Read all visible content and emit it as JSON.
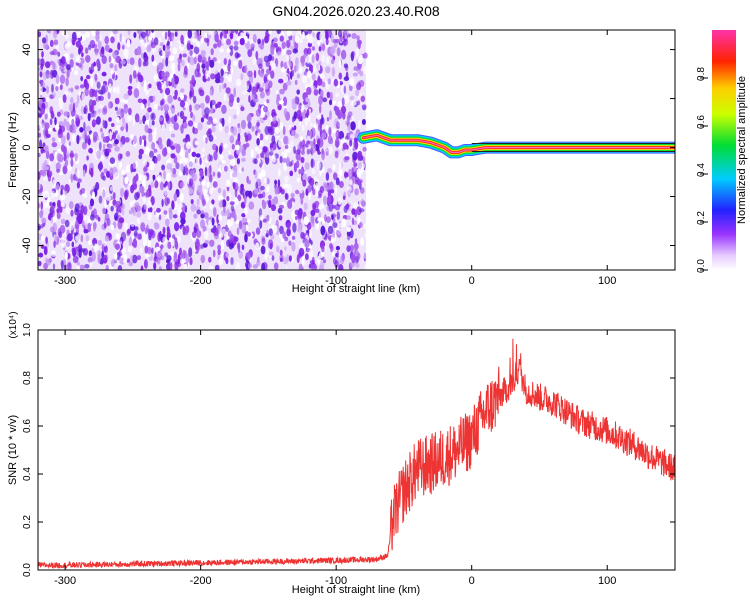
{
  "figure_title": "GN04.2026.020.23.40.R08",
  "chart_data": [
    {
      "id": "spectrogram",
      "type": "heatmap",
      "xlabel": "Height of straight line (km)",
      "ylabel": "Frequency (Hz)",
      "xlim": [
        -320,
        150
      ],
      "ylim": [
        -50,
        48
      ],
      "x_ticks": [
        -300,
        -200,
        -100,
        0,
        100
      ],
      "y_ticks": [
        -40,
        -20,
        0,
        20,
        40
      ],
      "x_tick_labels": [
        "-300",
        "-200",
        "-100",
        "0",
        "100"
      ],
      "y_tick_labels": [
        "-40",
        "-20",
        "0",
        "20",
        "40"
      ],
      "noise_region_x": [
        -320,
        -78
      ],
      "signal_track": {
        "x": [
          -80,
          -70,
          -60,
          -50,
          -40,
          -30,
          -20,
          -15,
          -10,
          -5,
          0,
          10,
          30,
          60,
          100,
          150
        ],
        "y": [
          4,
          5,
          3,
          3,
          3,
          2,
          0,
          -2,
          -2,
          -1,
          -1,
          0,
          0,
          0,
          0,
          0
        ]
      },
      "colorbar": {
        "label": "Normalized spectral amplitude",
        "range": [
          0,
          1
        ],
        "ticks": [
          0.0,
          0.2,
          0.4,
          0.6,
          0.8
        ],
        "tick_labels": [
          "0.0",
          "0.2",
          "0.4",
          "0.6",
          "0.8"
        ]
      }
    },
    {
      "id": "snr",
      "type": "line",
      "xlabel": "Height of straight line (km)",
      "ylabel": "SNR (10 * v/v)",
      "y_multiplier": "(x10⁴)",
      "xlim": [
        -320,
        150
      ],
      "ylim": [
        0,
        1.0
      ],
      "x_ticks": [
        -300,
        -200,
        -100,
        0,
        100
      ],
      "y_ticks": [
        0.0,
        0.2,
        0.4,
        0.6,
        0.8,
        1.0
      ],
      "x_tick_labels": [
        "-300",
        "-200",
        "-100",
        "0",
        "100"
      ],
      "y_tick_labels": [
        "0.0",
        "0.2",
        "0.4",
        "0.6",
        "0.8",
        "1.0"
      ],
      "line_color": "#ee3333",
      "series": [
        {
          "name": "SNR",
          "x": [
            -320,
            -300,
            -250,
            -200,
            -150,
            -100,
            -70,
            -62,
            -58,
            -50,
            -40,
            -30,
            -20,
            -10,
            0,
            10,
            20,
            30,
            35,
            40,
            50,
            60,
            70,
            80,
            90,
            100,
            110,
            120,
            130,
            140,
            150
          ],
          "values": [
            0.02,
            0.02,
            0.025,
            0.03,
            0.035,
            0.04,
            0.045,
            0.06,
            0.22,
            0.33,
            0.42,
            0.44,
            0.47,
            0.5,
            0.55,
            0.66,
            0.72,
            0.78,
            0.84,
            0.75,
            0.72,
            0.7,
            0.66,
            0.62,
            0.6,
            0.58,
            0.55,
            0.52,
            0.48,
            0.45,
            0.42
          ]
        }
      ]
    }
  ]
}
